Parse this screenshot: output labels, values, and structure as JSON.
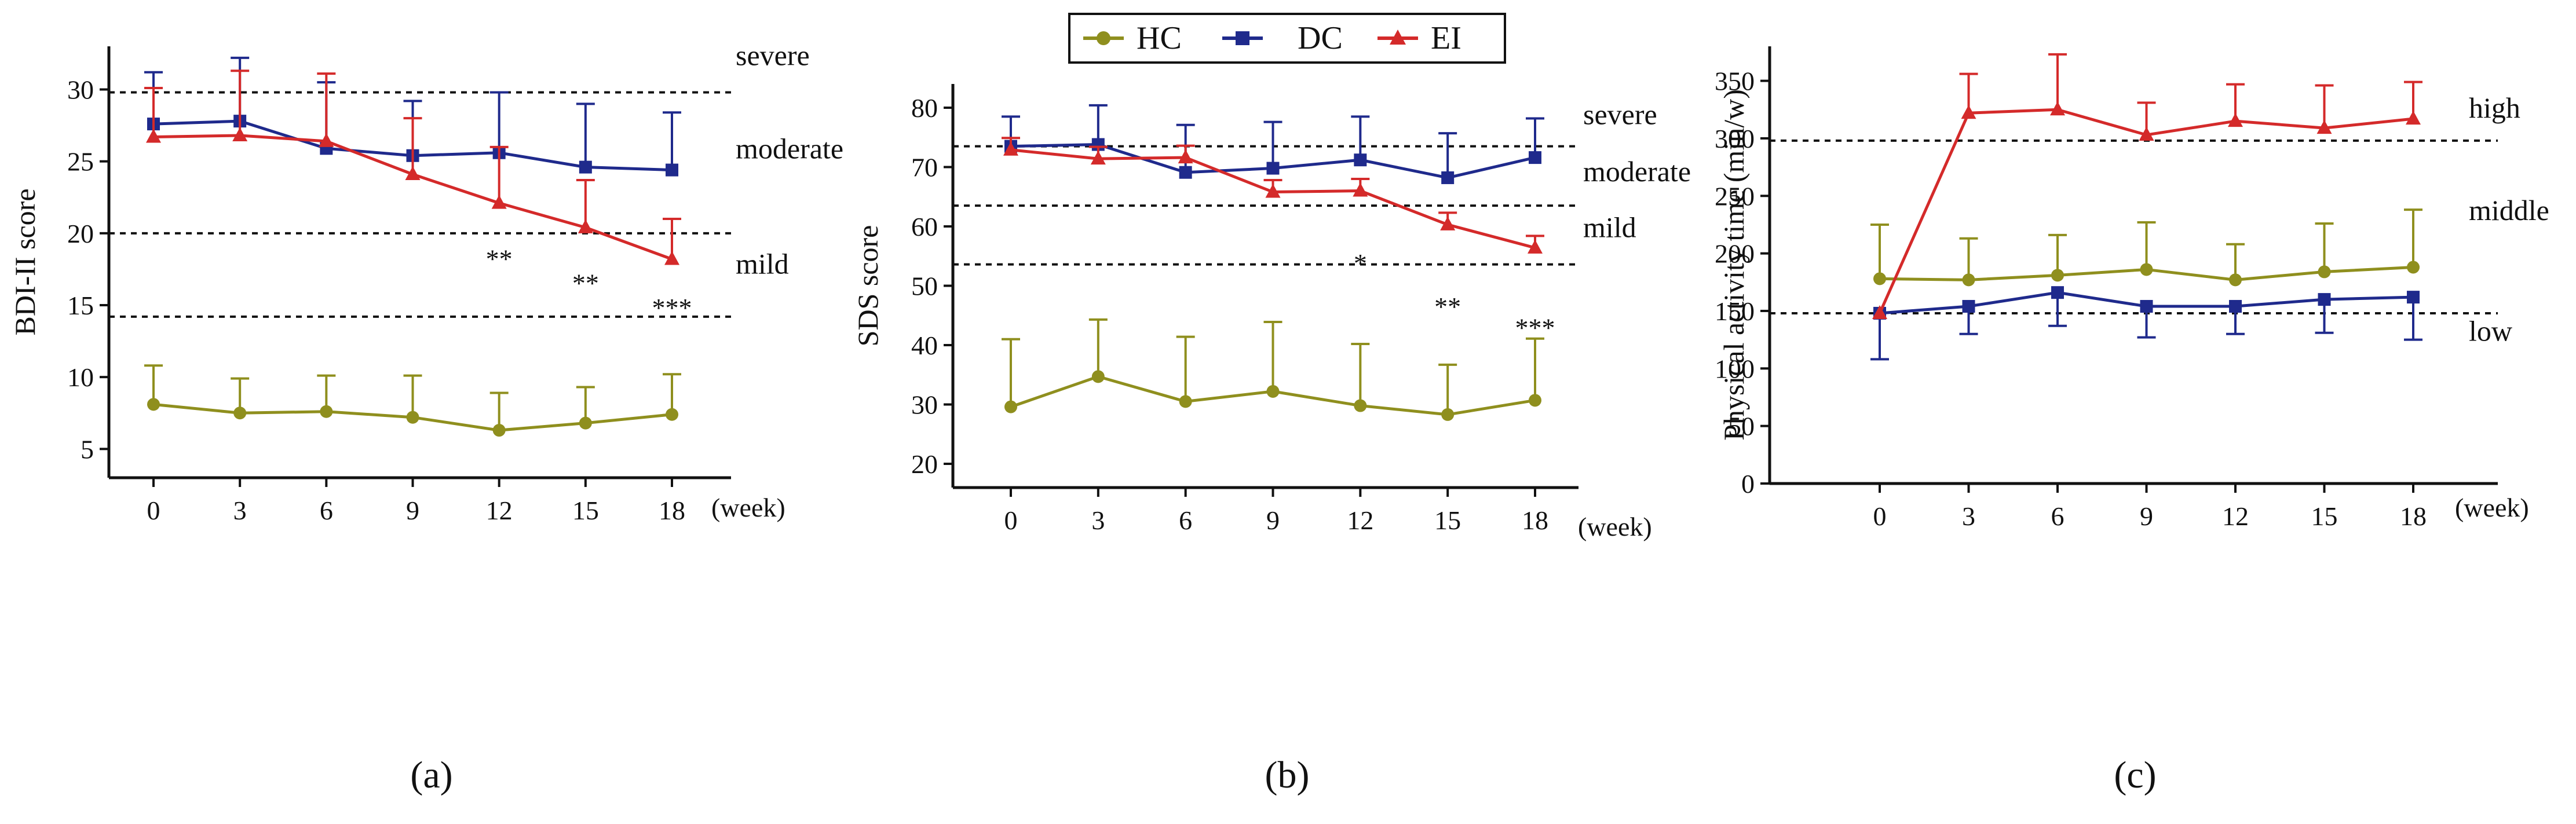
{
  "legend": [
    {
      "name": "HC",
      "color": "#8f8f1e",
      "marker": "circle"
    },
    {
      "name": "DC",
      "color": "#1f2a8c",
      "marker": "square"
    },
    {
      "name": "EI",
      "color": "#d42a2a",
      "marker": "triangle"
    }
  ],
  "chart_data": [
    {
      "type": "line",
      "panel_label": "(a)",
      "ylabel": "BDI-II score",
      "xlabel_unit": "(week)",
      "x": [
        0,
        3,
        6,
        9,
        12,
        15,
        18
      ],
      "x_tick_labels": [
        "0",
        "3",
        "6",
        "9",
        "12",
        "15",
        "18"
      ],
      "ylim": [
        3,
        33
      ],
      "y_ticks": [
        5,
        10,
        15,
        20,
        25,
        30
      ],
      "y_tick_labels": [
        "5",
        "10",
        "15",
        "20",
        "25",
        "30"
      ],
      "series": [
        {
          "name": "HC",
          "values": [
            8.1,
            7.5,
            7.6,
            7.2,
            6.3,
            6.8,
            7.4
          ],
          "error_up": [
            2.7,
            2.4,
            2.5,
            2.9,
            2.6,
            2.5,
            2.8
          ]
        },
        {
          "name": "DC",
          "values": [
            27.6,
            27.8,
            25.9,
            25.4,
            25.6,
            24.6,
            24.4
          ],
          "error_up": [
            3.6,
            4.4,
            4.6,
            3.8,
            4.2,
            4.4,
            4.0
          ]
        },
        {
          "name": "EI",
          "values": [
            26.7,
            26.8,
            26.4,
            24.1,
            22.1,
            20.4,
            18.2
          ],
          "error_up": [
            3.4,
            4.5,
            4.7,
            3.9,
            3.9,
            3.3,
            2.8
          ]
        }
      ],
      "reference_lines": [
        {
          "y": 29.8
        },
        {
          "y": 20.0
        },
        {
          "y": 14.2
        }
      ],
      "zone_labels": [
        {
          "text": "severe",
          "y": 31.7
        },
        {
          "text": "moderate",
          "y": 25.2
        },
        {
          "text": "mild",
          "y": 17.2
        }
      ],
      "significance": [
        {
          "x": 12,
          "y": 17.6,
          "text": "**"
        },
        {
          "x": 15,
          "y": 15.9,
          "text": "**"
        },
        {
          "x": 18,
          "y": 14.2,
          "text": "***"
        }
      ]
    },
    {
      "type": "line",
      "panel_label": "(b)",
      "ylabel": "SDS score",
      "xlabel_unit": "(week)",
      "x": [
        0,
        3,
        6,
        9,
        12,
        15,
        18
      ],
      "x_tick_labels": [
        "0",
        "3",
        "6",
        "9",
        "12",
        "15",
        "18"
      ],
      "ylim": [
        16,
        84
      ],
      "y_ticks": [
        20,
        30,
        40,
        50,
        60,
        70,
        80
      ],
      "y_tick_labels": [
        "20",
        "30",
        "40",
        "50",
        "60",
        "70",
        "80"
      ],
      "series": [
        {
          "name": "HC",
          "values": [
            29.6,
            34.7,
            30.5,
            32.2,
            29.8,
            28.3,
            30.7
          ],
          "error_up": [
            11.4,
            9.6,
            10.9,
            11.7,
            10.4,
            8.4,
            10.4
          ]
        },
        {
          "name": "DC",
          "values": [
            73.5,
            73.8,
            69.1,
            69.8,
            71.2,
            68.2,
            71.6
          ],
          "error_up": [
            5.0,
            6.6,
            8.0,
            7.8,
            7.3,
            7.5,
            6.6
          ]
        },
        {
          "name": "EI",
          "values": [
            72.9,
            71.4,
            71.6,
            65.8,
            66.0,
            60.3,
            56.4
          ],
          "error_up": [
            2.0,
            2.0,
            2.0,
            2.0,
            2.0,
            2.0,
            2.0
          ]
        }
      ],
      "reference_lines": [
        {
          "y": 73.5
        },
        {
          "y": 63.5
        },
        {
          "y": 53.6
        }
      ],
      "zone_labels": [
        {
          "text": "severe",
          "y": 77.2
        },
        {
          "text": "moderate",
          "y": 67.6
        },
        {
          "text": "mild",
          "y": 58.2
        }
      ],
      "significance": [
        {
          "x": 12,
          "y": 52.3,
          "text": "*"
        },
        {
          "x": 15,
          "y": 45.0,
          "text": "**"
        },
        {
          "x": 18,
          "y": 41.4,
          "text": "***"
        }
      ]
    },
    {
      "type": "line",
      "panel_label": "(c)",
      "ylabel": "Physical activity time (min/w)",
      "xlabel_unit": "(week)",
      "x": [
        0,
        3,
        6,
        9,
        12,
        15,
        18
      ],
      "x_tick_labels": [
        "0",
        "3",
        "6",
        "9",
        "12",
        "15",
        "18"
      ],
      "ylim": [
        0,
        380
      ],
      "y_ticks": [
        0,
        50,
        100,
        150,
        200,
        250,
        300,
        350
      ],
      "y_tick_labels": [
        "0",
        "50",
        "100",
        "150",
        "200",
        "250",
        "300",
        "350"
      ],
      "series": [
        {
          "name": "HC",
          "values": [
            178,
            177,
            181,
            186,
            177,
            184,
            188
          ],
          "error_up": [
            47,
            36,
            35,
            41,
            31,
            42,
            50
          ]
        },
        {
          "name": "DC",
          "values": [
            148,
            154,
            166,
            154,
            154,
            160,
            162
          ],
          "error_up": [
            0,
            0,
            0,
            0,
            0,
            0,
            0
          ],
          "error_down": [
            40,
            24,
            29,
            27,
            24,
            29,
            37
          ]
        },
        {
          "name": "EI",
          "values": [
            148,
            322,
            325,
            303,
            315,
            309,
            317
          ],
          "error_up": [
            0,
            34,
            48,
            28,
            32,
            37,
            32
          ]
        }
      ],
      "reference_lines": [
        {
          "y": 298
        },
        {
          "y": 148
        }
      ],
      "zone_labels": [
        {
          "text": "high",
          "y": 318
        },
        {
          "text": "middle",
          "y": 229
        },
        {
          "text": "low",
          "y": 124
        }
      ],
      "significance": []
    }
  ]
}
